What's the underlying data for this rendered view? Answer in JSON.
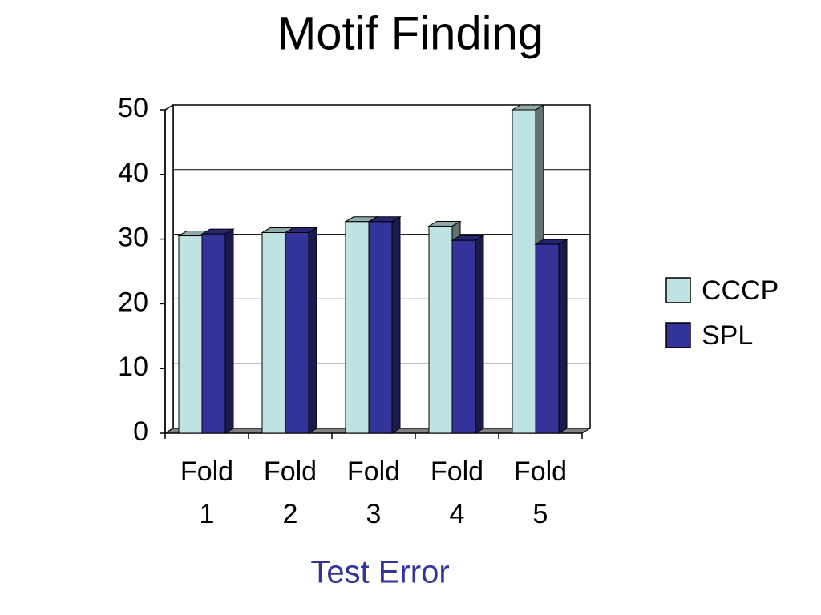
{
  "chart_data": {
    "type": "bar3d",
    "title": "Motif Finding",
    "x_label": "Test Error",
    "categories": [
      "Fold 1",
      "Fold 2",
      "Fold 3",
      "Fold 4",
      "Fold 5"
    ],
    "series": [
      {
        "name": "CCCP",
        "color": "#bfe3e3",
        "values": [
          30.5,
          31,
          32.7,
          32,
          50
        ]
      },
      {
        "name": "SPL",
        "color": "#333399",
        "values": [
          30.8,
          31,
          32.7,
          29.8,
          29.2
        ]
      }
    ],
    "ylim": [
      0,
      50
    ],
    "yticks": [
      0,
      10,
      20,
      30,
      40,
      50
    ],
    "grid": true,
    "legend": "right"
  }
}
